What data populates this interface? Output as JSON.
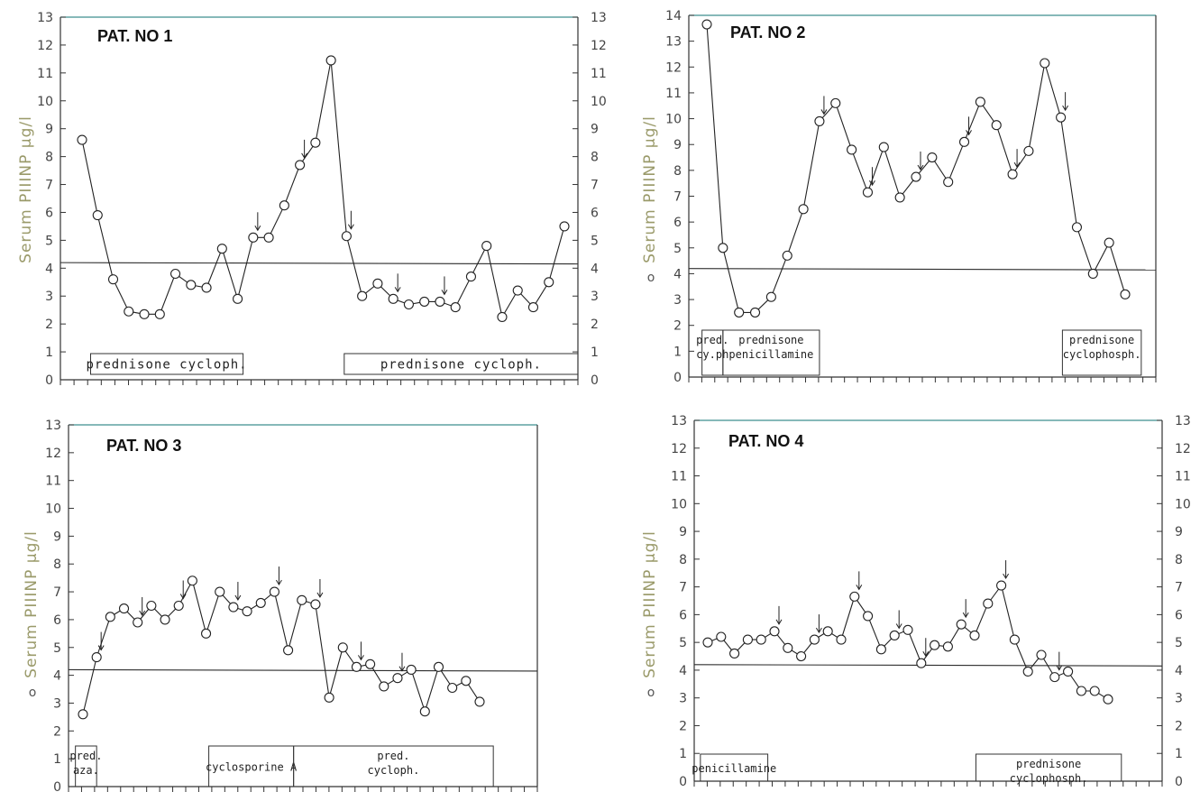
{
  "chart_data": [
    {
      "type": "line",
      "title": "PAT. NO 1",
      "ylabel": "Serum PIIINP µg/l",
      "ylabel_marker": "",
      "ylim": [
        0,
        13
      ],
      "yticks": [
        0,
        1,
        2,
        3,
        4,
        5,
        6,
        7,
        8,
        9,
        10,
        11,
        12,
        13
      ],
      "right_axis": true,
      "reference_line": 4.2,
      "values": [
        8.6,
        5.9,
        3.6,
        2.45,
        2.35,
        2.35,
        3.8,
        3.4,
        3.3,
        4.7,
        2.9,
        5.1,
        5.1,
        6.25,
        7.7,
        8.5,
        11.45,
        5.15,
        3.0,
        3.45,
        2.9,
        2.7,
        2.8,
        2.8,
        2.6,
        3.7,
        4.8,
        2.25,
        3.2,
        2.6,
        3.5,
        5.5
      ],
      "arrows_at": [
        11,
        14,
        17,
        20,
        23
      ],
      "therapy_boxes": [
        {
          "start": 0.55,
          "end": 10.35,
          "lines": [
            "prednisone cycloph."
          ]
        },
        {
          "start": 16.85,
          "end": 31.9,
          "lines": [
            "prednisone      cycloph."
          ]
        }
      ]
    },
    {
      "type": "line",
      "title": "PAT. NO 2",
      "ylabel": "Serum PIIINP µg/l",
      "ylabel_marker": "o",
      "ylim": [
        0,
        14
      ],
      "yticks": [
        0,
        1,
        2,
        3,
        4,
        5,
        6,
        7,
        8,
        9,
        10,
        11,
        12,
        13,
        14
      ],
      "right_axis": false,
      "reference_line": 4.2,
      "values": [
        13.65,
        5.0,
        2.5,
        2.5,
        3.1,
        4.7,
        6.5,
        9.9,
        10.6,
        8.8,
        7.15,
        8.9,
        6.95,
        7.75,
        8.5,
        7.55,
        9.1,
        10.65,
        9.75,
        7.85,
        8.75,
        12.15,
        10.05,
        5.8,
        4.0,
        5.2,
        3.2
      ],
      "arrows_at": [
        7,
        10,
        13,
        16,
        19,
        22
      ],
      "therapy_boxes": [
        {
          "start": -0.3,
          "end": 1.0,
          "lines": [
            "pred.",
            "cy.ph"
          ]
        },
        {
          "start": 1.0,
          "end": 7.0,
          "lines": [
            "prednisone",
            "penicillamine"
          ]
        },
        {
          "start": 22.1,
          "end": 27.0,
          "lines": [
            "prednisone",
            "cyclophosph."
          ]
        }
      ]
    },
    {
      "type": "line",
      "title": "PAT. NO 3",
      "ylabel": "Serum PIIINP µg/l",
      "ylabel_marker": "o",
      "ylim": [
        0,
        13
      ],
      "yticks": [
        0,
        1,
        2,
        3,
        4,
        5,
        6,
        7,
        8,
        9,
        10,
        11,
        12,
        13
      ],
      "right_axis": false,
      "reference_line": 4.2,
      "values": [
        2.6,
        4.65,
        6.1,
        6.4,
        5.9,
        6.5,
        6.0,
        6.5,
        7.4,
        5.5,
        7.0,
        6.45,
        6.3,
        6.6,
        7.0,
        4.9,
        6.7,
        6.55,
        3.2,
        5.0,
        4.3,
        4.4,
        3.6,
        3.9,
        4.2,
        2.7,
        4.3,
        3.55,
        3.8,
        3.05
      ],
      "arrows_at": [
        1,
        4,
        7,
        11,
        14,
        17,
        20,
        23
      ],
      "therapy_boxes": [
        {
          "start": -0.55,
          "end": 1.0,
          "lines": [
            "pred.",
            "aza."
          ]
        },
        {
          "start": 9.2,
          "end": 15.4,
          "lines": [
            "cyclosporine A"
          ]
        },
        {
          "start": 15.4,
          "end": 30.0,
          "lines": [
            "pred.",
            "cycloph."
          ]
        }
      ]
    },
    {
      "type": "line",
      "title": "PAT. NO 4",
      "ylabel": "Serum PIIINP µg/l",
      "ylabel_marker": "o",
      "ylim": [
        0,
        13
      ],
      "yticks": [
        0,
        1,
        2,
        3,
        4,
        5,
        6,
        7,
        8,
        9,
        10,
        11,
        12,
        13
      ],
      "right_axis": true,
      "reference_line": 4.2,
      "values": [
        5.0,
        5.2,
        4.6,
        5.1,
        5.1,
        5.4,
        4.8,
        4.5,
        5.1,
        5.4,
        5.1,
        6.65,
        5.95,
        4.75,
        5.25,
        5.45,
        4.25,
        4.9,
        4.85,
        5.65,
        5.25,
        6.4,
        7.05,
        5.1,
        3.95,
        4.55,
        3.75,
        3.95,
        3.25,
        3.25,
        2.95
      ],
      "arrows_at": [
        5,
        8,
        11,
        14,
        16,
        19,
        22,
        26
      ],
      "therapy_boxes": [
        {
          "start": -0.55,
          "end": 4.5,
          "lines": [
            "penicillamine"
          ]
        },
        {
          "start": 20.1,
          "end": 31.0,
          "lines": [
            "prednisone",
            "cyclophosph."
          ]
        }
      ]
    }
  ]
}
